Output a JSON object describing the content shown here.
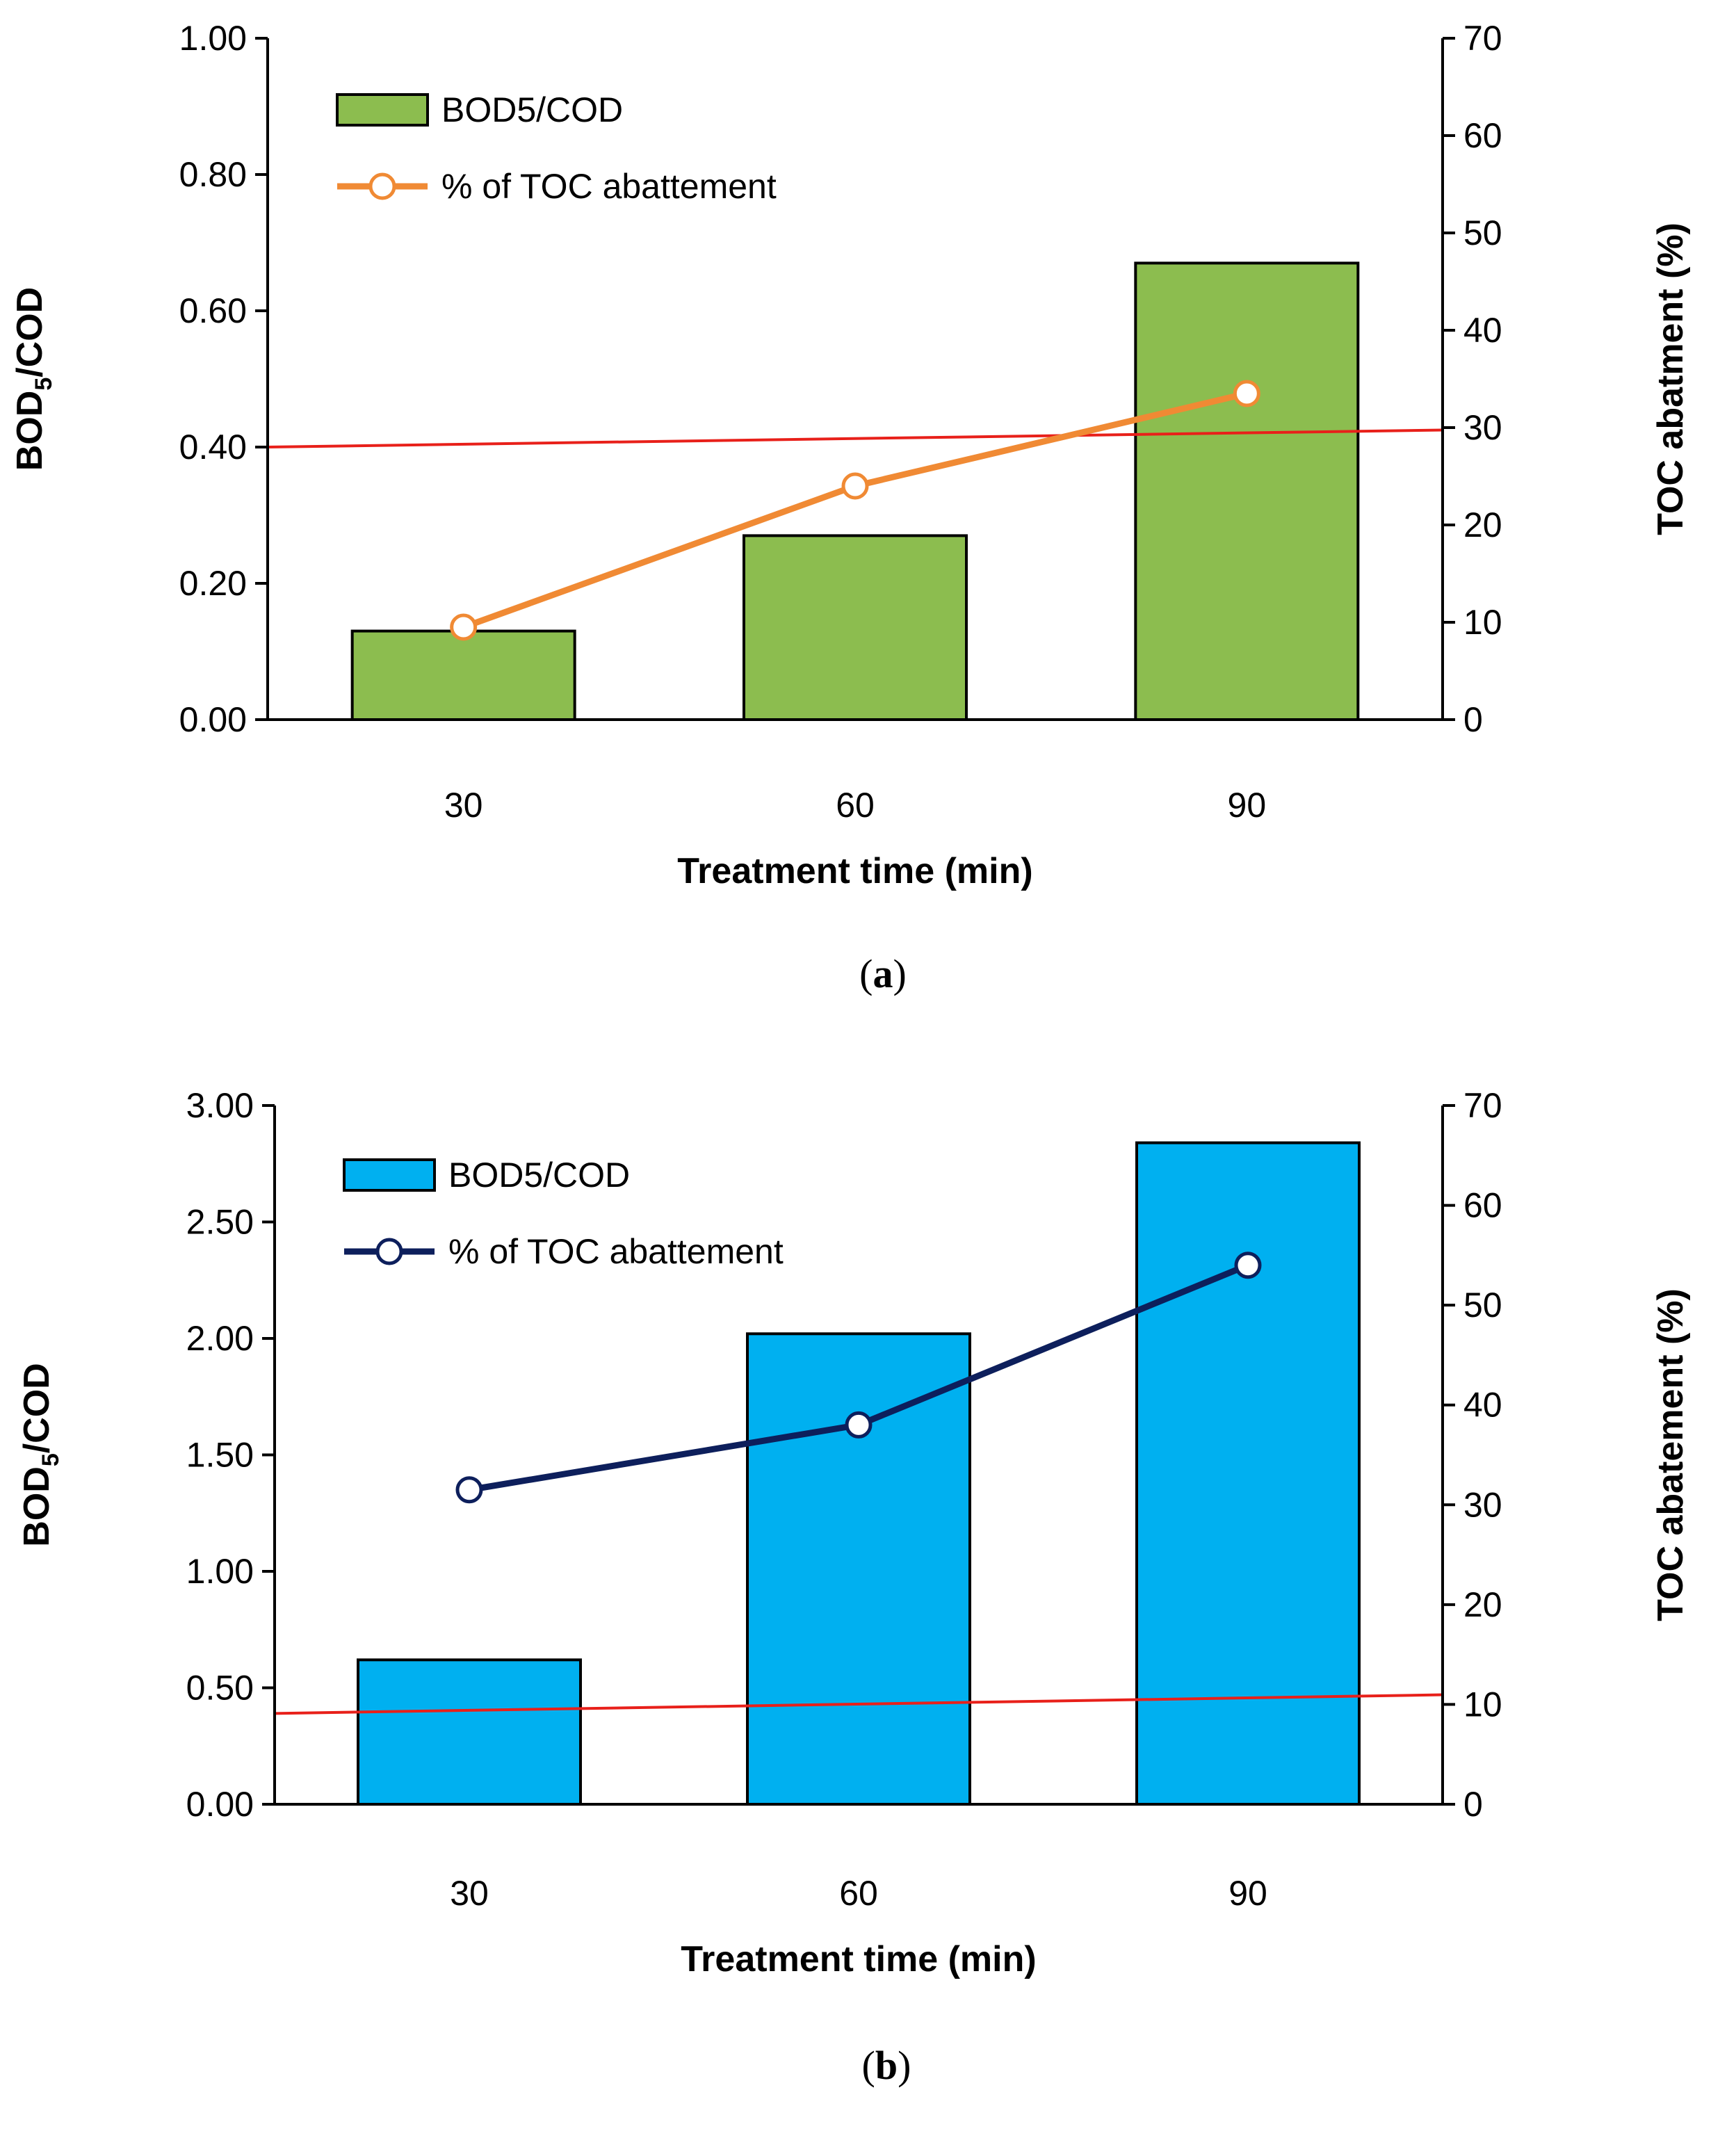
{
  "chart_data": [
    {
      "type": "bar+line",
      "panel": "(a)",
      "panel_open": "(",
      "panel_letter": "a",
      "panel_close": ")",
      "categories": [
        "30",
        "60",
        "90"
      ],
      "xlabel": "Treatment time (min)",
      "ylabel_left_main": "BOD",
      "ylabel_left_sub": "5",
      "ylabel_left_rest": "/COD",
      "ylabel_right": "TOC abatment (%)",
      "ylim_left": [
        0,
        1.0
      ],
      "ylim_right": [
        0,
        70
      ],
      "yticks_left": [
        "0.00",
        "0.20",
        "0.40",
        "0.60",
        "0.80",
        "1.00"
      ],
      "yticks_right": [
        "0",
        "10",
        "20",
        "30",
        "40",
        "50",
        "60",
        "70"
      ],
      "series": [
        {
          "name": "BOD5/COD",
          "kind": "bar",
          "axis": "left",
          "values": [
            0.13,
            0.27,
            0.67
          ],
          "color": "#8cbd4f"
        },
        {
          "name": "% of TOC abattement",
          "kind": "line",
          "axis": "right",
          "values": [
            9.5,
            24,
            33.5
          ],
          "color": "#f08a34"
        }
      ],
      "reference_line": {
        "axis": "left",
        "start": 0.4,
        "end": 0.425,
        "color": "#e8201a"
      }
    },
    {
      "type": "bar+line",
      "panel": "(b)",
      "panel_open": "(",
      "panel_letter": "b",
      "panel_close": ")",
      "categories": [
        "30",
        "60",
        "90"
      ],
      "xlabel": "Treatment time (min)",
      "ylabel_left_main": "BOD",
      "ylabel_left_sub": "5",
      "ylabel_left_rest": "/COD",
      "ylabel_right": "TOC abatement (%)",
      "ylim_left": [
        0,
        3.0
      ],
      "ylim_right": [
        0,
        70
      ],
      "yticks_left": [
        "0.00",
        "0.50",
        "1.00",
        "1.50",
        "2.00",
        "2.50",
        "3.00"
      ],
      "yticks_right": [
        "0",
        "10",
        "20",
        "30",
        "40",
        "50",
        "60",
        "70"
      ],
      "series": [
        {
          "name": "BOD5/COD",
          "kind": "bar",
          "axis": "left",
          "values": [
            0.62,
            2.02,
            2.84
          ],
          "color": "#00b0f0"
        },
        {
          "name": "% of TOC abattement",
          "kind": "line",
          "axis": "right",
          "values": [
            31.5,
            38,
            54
          ],
          "color": "#0d1f5c"
        }
      ],
      "reference_line": {
        "axis": "left",
        "start": 0.39,
        "end": 0.47,
        "color": "#e8201a"
      }
    }
  ]
}
